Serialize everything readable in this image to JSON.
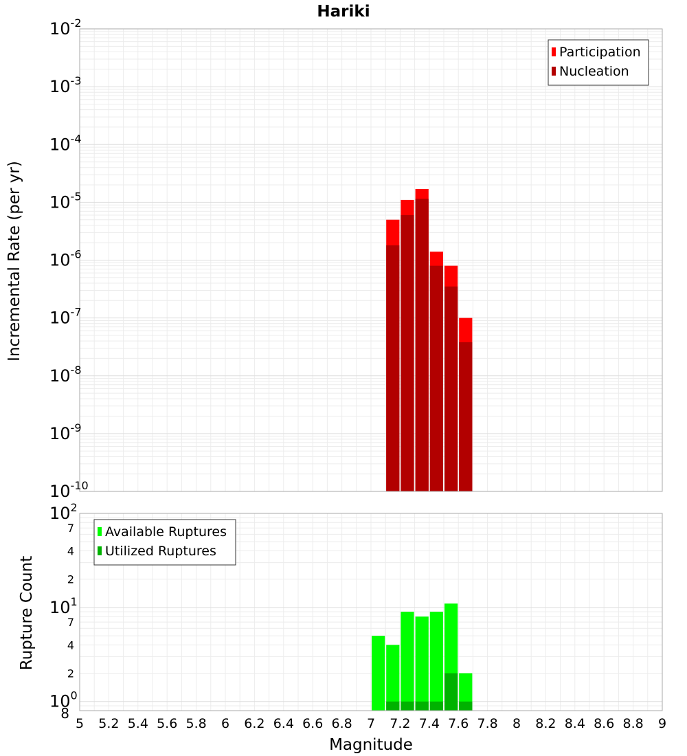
{
  "chart_data": [
    {
      "type": "bar",
      "title": "Hariki",
      "ylabel": "Incremental Rate (per yr)",
      "xlabel": "",
      "yscale": "log",
      "ylim": [
        1e-10,
        0.01
      ],
      "xlim": [
        5,
        9
      ],
      "grid": true,
      "legend_position": "top-right",
      "y_ticks": [
        {
          "base": "10",
          "exp": "-10"
        },
        {
          "base": "10",
          "exp": "-9"
        },
        {
          "base": "10",
          "exp": "-8"
        },
        {
          "base": "10",
          "exp": "-7"
        },
        {
          "base": "10",
          "exp": "-6"
        },
        {
          "base": "10",
          "exp": "-5"
        },
        {
          "base": "10",
          "exp": "-4"
        },
        {
          "base": "10",
          "exp": "-3"
        },
        {
          "base": "10",
          "exp": "-2"
        }
      ],
      "x": [
        7.15,
        7.25,
        7.35,
        7.45,
        7.55,
        7.65
      ],
      "bar_width": 0.1,
      "series": [
        {
          "name": "Participation",
          "color": "#ff0000",
          "values": [
            5e-06,
            1.1e-05,
            1.7e-05,
            1.4e-06,
            8e-07,
            1e-07
          ]
        },
        {
          "name": "Nucleation",
          "color": "#b20000",
          "values": [
            1.8e-06,
            6e-06,
            1.15e-05,
            8e-07,
            3.5e-07,
            3.8e-08
          ]
        }
      ]
    },
    {
      "type": "bar",
      "title": "",
      "ylabel": "Rupture Count",
      "xlabel": "Magnitude",
      "yscale": "log",
      "ylim": [
        0.8,
        100
      ],
      "xlim": [
        5,
        9
      ],
      "grid": true,
      "legend_position": "top-left",
      "x_ticks": [
        "5",
        "5.2",
        "5.4",
        "5.6",
        "5.8",
        "6",
        "6.2",
        "6.4",
        "6.6",
        "6.8",
        "7",
        "7.2",
        "7.4",
        "7.6",
        "7.8",
        "8",
        "8.2",
        "8.4",
        "8.6",
        "8.8",
        "9"
      ],
      "y_major_ticks": [
        {
          "value": 1,
          "base": "10",
          "exp": "0"
        },
        {
          "value": 10,
          "base": "10",
          "exp": "1"
        },
        {
          "value": 100,
          "base": "10",
          "exp": "2"
        }
      ],
      "y_minor_ticks": [
        {
          "value": 0.8,
          "label": "8"
        },
        {
          "value": 2,
          "label": "2"
        },
        {
          "value": 4,
          "label": "4"
        },
        {
          "value": 7,
          "label": "7"
        },
        {
          "value": 20,
          "label": "2"
        },
        {
          "value": 40,
          "label": "4"
        },
        {
          "value": 70,
          "label": "7"
        }
      ],
      "x": [
        7.05,
        7.15,
        7.25,
        7.35,
        7.45,
        7.55,
        7.65
      ],
      "bar_width": 0.1,
      "series": [
        {
          "name": "Available Ruptures",
          "color": "#00ff00",
          "values": [
            5,
            4,
            9,
            8,
            9,
            11,
            2
          ]
        },
        {
          "name": "Utilized Ruptures",
          "color": "#00b200",
          "values": [
            null,
            1,
            1,
            1,
            1,
            2,
            1
          ]
        }
      ]
    }
  ]
}
